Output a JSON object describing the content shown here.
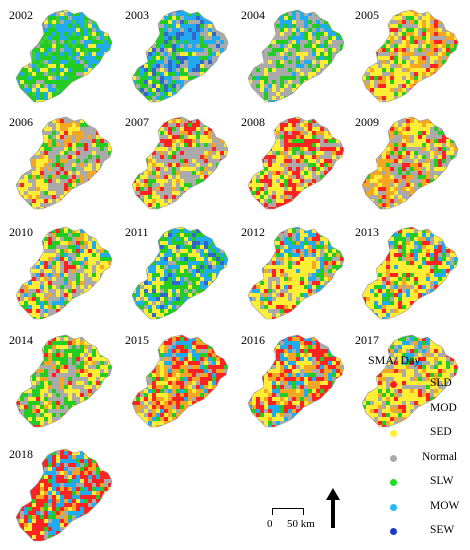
{
  "maps": [
    {
      "year": "2002",
      "palette": [
        "#22cc22",
        "#22cc22",
        "#22cc22",
        "#3ccf3c",
        "#22aaee",
        "#22aaee",
        "#aaaaaa",
        "#ffee33"
      ],
      "bias": {
        "west": "#22cc22",
        "east": "#22aaee",
        "north": "#22aaee",
        "center": "#22cc22"
      }
    },
    {
      "year": "2003",
      "palette": [
        "#22cc22",
        "#22cc22",
        "#aaaaaa",
        "#aaaaaa",
        "#22aaee",
        "#3366cc",
        "#22aaee",
        "#ffee33"
      ],
      "bias": {
        "west": "#22cc22",
        "east": "#aaaaaa",
        "north": "#22aaee",
        "center": "#22aaee"
      }
    },
    {
      "year": "2004",
      "palette": [
        "#aaaaaa",
        "#aaaaaa",
        "#22cc22",
        "#22cc22",
        "#ffee33",
        "#ffee33",
        "#22aaee",
        "#aaaaaa"
      ],
      "bias": {
        "west": "#aaaaaa",
        "east": "#22cc22",
        "north": "#22aaee",
        "center": "#aaaaaa"
      }
    },
    {
      "year": "2005",
      "palette": [
        "#ffee33",
        "#ffee33",
        "#f5a623",
        "#f5a623",
        "#aaaaaa",
        "#aaaaaa",
        "#22cc22",
        "#ff2222"
      ],
      "bias": {
        "west": "#ffee33",
        "east": "#f5a623",
        "north": "#ffee33",
        "center": "#ffee33"
      }
    },
    {
      "year": "2006",
      "palette": [
        "#ffee33",
        "#ffee33",
        "#f5a623",
        "#aaaaaa",
        "#aaaaaa",
        "#aaaaaa",
        "#22cc22",
        "#ff2222"
      ],
      "bias": {
        "west": "#ffee33",
        "east": "#aaaaaa",
        "north": "#f5a623",
        "center": "#aaaaaa"
      }
    },
    {
      "year": "2007",
      "palette": [
        "#ffee33",
        "#f5a623",
        "#aaaaaa",
        "#aaaaaa",
        "#aaaaaa",
        "#ffee33",
        "#ff2222",
        "#22cc22"
      ],
      "bias": {
        "west": "#ffee33",
        "east": "#aaaaaa",
        "north": "#ff2222",
        "center": "#aaaaaa"
      }
    },
    {
      "year": "2008",
      "palette": [
        "#ffee33",
        "#ffee33",
        "#f5a623",
        "#aaaaaa",
        "#aaaaaa",
        "#ff2222",
        "#ff2222",
        "#22cc22"
      ],
      "bias": {
        "west": "#ffee33",
        "east": "#aaaaaa",
        "north": "#ff2222",
        "center": "#ffee33"
      }
    },
    {
      "year": "2009",
      "palette": [
        "#ffee33",
        "#f5a623",
        "#f5a623",
        "#aaaaaa",
        "#aaaaaa",
        "#22cc22",
        "#ffee33",
        "#ff2222"
      ],
      "bias": {
        "west": "#f5a623",
        "east": "#aaaaaa",
        "north": "#ffee33",
        "center": "#aaaaaa"
      }
    },
    {
      "year": "2010",
      "palette": [
        "#ffee33",
        "#ffee33",
        "#22cc22",
        "#aaaaaa",
        "#22aaee",
        "#f5a623",
        "#aaaaaa",
        "#ff2222"
      ],
      "bias": {
        "west": "#ffee33",
        "east": "#ffee33",
        "north": "#22cc22",
        "center": "#aaaaaa"
      }
    },
    {
      "year": "2011",
      "palette": [
        "#22cc22",
        "#22cc22",
        "#22aaee",
        "#ffee33",
        "#aaaaaa",
        "#22aaee",
        "#3366cc",
        "#ffee33"
      ],
      "bias": {
        "west": "#ffee33",
        "east": "#22aaee",
        "north": "#22cc22",
        "center": "#22cc22"
      }
    },
    {
      "year": "2012",
      "palette": [
        "#ffee33",
        "#ffee33",
        "#f5a623",
        "#22cc22",
        "#aaaaaa",
        "#aaaaaa",
        "#22aaee",
        "#ff2222"
      ],
      "bias": {
        "west": "#ffee33",
        "east": "#22cc22",
        "north": "#22aaee",
        "center": "#ffee33"
      }
    },
    {
      "year": "2013",
      "palette": [
        "#ffee33",
        "#ffee33",
        "#f5a623",
        "#22cc22",
        "#aaaaaa",
        "#22aaee",
        "#ffee33",
        "#ff2222"
      ],
      "bias": {
        "west": "#ffee33",
        "east": "#22aaee",
        "north": "#22cc22",
        "center": "#ffee33"
      }
    },
    {
      "year": "2014",
      "palette": [
        "#ffee33",
        "#ffee33",
        "#f5a623",
        "#aaaaaa",
        "#aaaaaa",
        "#22cc22",
        "#22cc22",
        "#ff2222"
      ],
      "bias": {
        "west": "#22cc22",
        "east": "#ffee33",
        "north": "#22cc22",
        "center": "#aaaaaa"
      }
    },
    {
      "year": "2015",
      "palette": [
        "#ff2222",
        "#ff2222",
        "#f5a623",
        "#f5a623",
        "#ffee33",
        "#aaaaaa",
        "#22cc22",
        "#22aaee"
      ],
      "bias": {
        "west": "#ffee33",
        "east": "#ff2222",
        "north": "#22aaee",
        "center": "#f5a623"
      }
    },
    {
      "year": "2016",
      "palette": [
        "#ff2222",
        "#f5a623",
        "#f5a623",
        "#ffee33",
        "#aaaaaa",
        "#22cc22",
        "#22aaee",
        "#ff2222"
      ],
      "bias": {
        "west": "#ffee33",
        "east": "#ff2222",
        "north": "#22aaee",
        "center": "#f5a623"
      }
    },
    {
      "year": "2017",
      "palette": [
        "#ffee33",
        "#ffee33",
        "#ffee33",
        "#f5a623",
        "#aaaaaa",
        "#aaaaaa",
        "#22cc22",
        "#ff2222"
      ],
      "bias": {
        "west": "#ffee33",
        "east": "#ffee33",
        "north": "#22aaee",
        "center": "#ffee33"
      }
    },
    {
      "year": "2018",
      "palette": [
        "#ff2222",
        "#ff2222",
        "#ffee33",
        "#22aaee",
        "#22cc22",
        "#aaaaaa",
        "#f5a623",
        "#ff2222"
      ],
      "bias": {
        "west": "#ff2222",
        "east": "#ff2222",
        "north": "#22aaee",
        "center": "#22aaee"
      }
    }
  ],
  "legend": {
    "title": "SMA/ Day",
    "items": [
      {
        "label": "SLD",
        "color": "#ff1a1a"
      },
      {
        "label": "MOD",
        "color": "#f5a623"
      },
      {
        "label": "SED",
        "color": "#ffee33"
      },
      {
        "label": "Normal",
        "color": "#aaaaaa"
      },
      {
        "label": "SLW",
        "color": "#22dd22"
      },
      {
        "label": "MOW",
        "color": "#22bbee"
      },
      {
        "label": "SEW",
        "color": "#1a3cc8"
      }
    ]
  },
  "scale_bar": {
    "start": "0",
    "end": "50 km"
  }
}
